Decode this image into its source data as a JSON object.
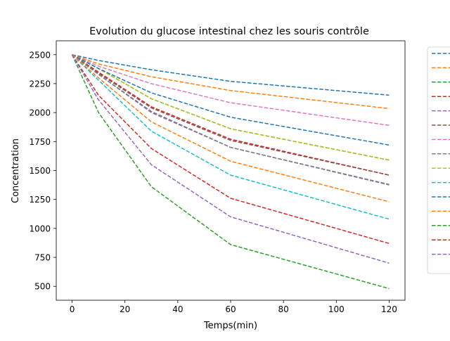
{
  "chart_data": {
    "type": "line",
    "title": "Evolution du glucose intestinal chez les souris contrôle",
    "xlabel": "Temps(min)",
    "ylabel": "Concentration",
    "x": [
      0,
      10,
      30,
      60,
      120
    ],
    "xlim": [
      -6,
      126
    ],
    "ylim": [
      380,
      2620
    ],
    "xticks": [
      0,
      20,
      40,
      60,
      80,
      100,
      120
    ],
    "yticks": [
      500,
      750,
      1000,
      1250,
      1500,
      1750,
      2000,
      2250,
      2500
    ],
    "grid": false,
    "line_style": "dashed",
    "legend_placement": "right, outside plot area (entry labels not legible)",
    "series": [
      {
        "color": "#1f77b4",
        "values": [
          2500,
          2450,
          2370,
          2270,
          2150
        ]
      },
      {
        "color": "#ff7f0e",
        "values": [
          2500,
          2420,
          2310,
          2190,
          2035
        ]
      },
      {
        "color": "#2ca02c",
        "values": [
          2500,
          2380,
          2120,
          1860,
          1590
        ]
      },
      {
        "color": "#d62728",
        "values": [
          2500,
          2350,
          2050,
          1770,
          1460
        ]
      },
      {
        "color": "#9467bd",
        "values": [
          2500,
          2330,
          2000,
          1700,
          1380
        ]
      },
      {
        "color": "#8c564b",
        "values": [
          2500,
          2340,
          2040,
          1760,
          1460
        ]
      },
      {
        "color": "#e377c2",
        "values": [
          2500,
          2400,
          2250,
          2085,
          1890
        ]
      },
      {
        "color": "#7f7f7f",
        "values": [
          2500,
          2330,
          2010,
          1700,
          1375
        ]
      },
      {
        "color": "#bcbd22",
        "values": [
          2500,
          2380,
          2120,
          1860,
          1590
        ]
      },
      {
        "color": "#17becf",
        "values": [
          2500,
          2280,
          1840,
          1460,
          1080
        ]
      },
      {
        "color": "#1f77b4",
        "values": [
          2500,
          2380,
          2170,
          1960,
          1720
        ]
      },
      {
        "color": "#ff7f0e",
        "values": [
          2500,
          2300,
          1920,
          1580,
          1230
        ]
      },
      {
        "color": "#2ca02c",
        "values": [
          2500,
          2000,
          1360,
          860,
          480
        ]
      },
      {
        "color": "#d62728",
        "values": [
          2500,
          2150,
          1690,
          1260,
          870
        ]
      },
      {
        "color": "#9467bd",
        "values": [
          2500,
          2110,
          1550,
          1100,
          700
        ]
      }
    ]
  }
}
